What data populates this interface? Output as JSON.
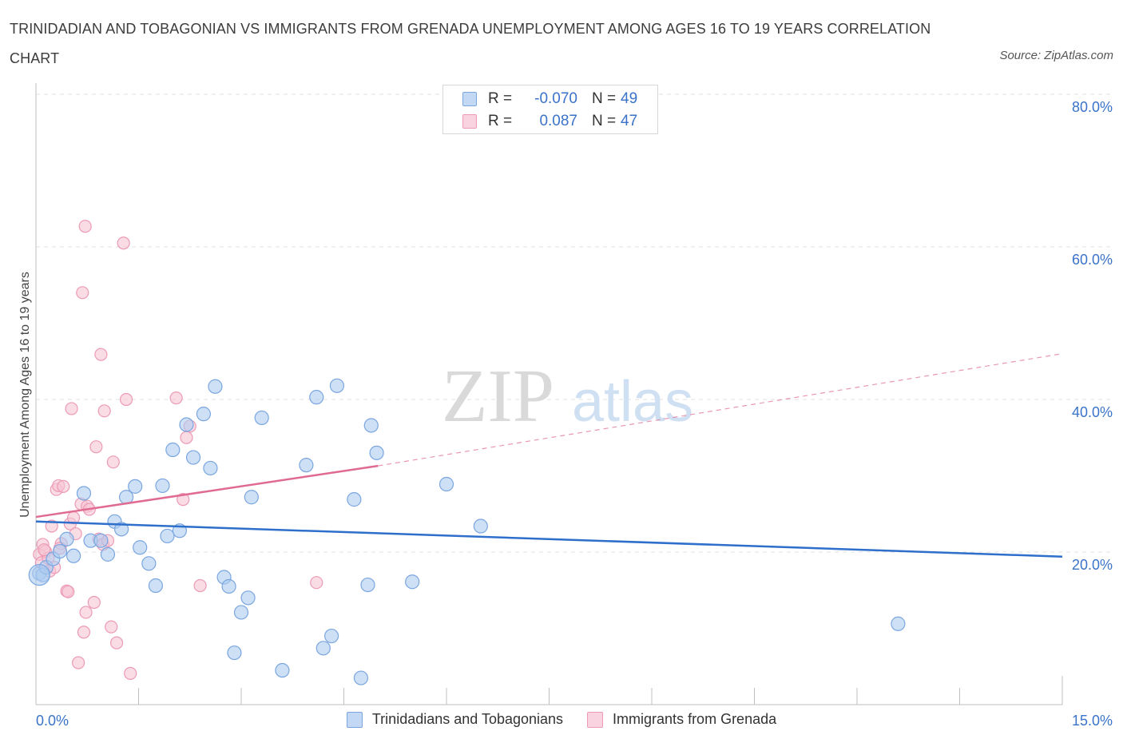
{
  "title": "TRINIDADIAN AND TOBAGONIAN VS IMMIGRANTS FROM GRENADA UNEMPLOYMENT AMONG AGES 16 TO 19 YEARS CORRELATION CHART",
  "source": "Source: ZipAtlas.com",
  "watermark": {
    "zip": "ZIP",
    "atlas": "atlas"
  },
  "legend": {
    "r_label": "R =",
    "n_label": "N =",
    "series": [
      {
        "r": "-0.070",
        "n": "49"
      },
      {
        "r": "0.087",
        "n": "47"
      }
    ]
  },
  "colors": {
    "blue_fill": "#aecbf0",
    "blue_stroke": "#7aa6e0",
    "blue_line": "#2e6fcb",
    "pink_fill": "#f6c4d4",
    "pink_stroke": "#ec9ab5",
    "pink_line": "#e06b92",
    "tick_text": "#3a73c9"
  },
  "chart_data": {
    "type": "scatter",
    "title": "TRINIDADIAN AND TOBAGONIAN VS IMMIGRANTS FROM GRENADA UNEMPLOYMENT AMONG AGES 16 TO 19 YEARS CORRELATION CHART",
    "xlabel": "",
    "ylabel": "Unemployment Among Ages 16 to 19 years",
    "xlim": [
      0,
      15
    ],
    "ylim": [
      0,
      80
    ],
    "x_tick_labels": [
      "0.0%",
      "15.0%"
    ],
    "y_ticks": [
      20,
      40,
      60,
      80
    ],
    "y_tick_labels": [
      "20.0%",
      "40.0%",
      "60.0%",
      "80.0%"
    ],
    "grid": true,
    "series": [
      {
        "name": "Trinidadians and Tobagonians",
        "color": "#aecbf0",
        "trend": {
          "x": [
            0,
            15
          ],
          "y": [
            24.0,
            19.4
          ],
          "style": "solid"
        },
        "points": [
          [
            0.05,
            17.2
          ],
          [
            0.1,
            17.0
          ],
          [
            0.15,
            18.0
          ],
          [
            0.25,
            19.1
          ],
          [
            0.35,
            20.1
          ],
          [
            0.45,
            21.7
          ],
          [
            0.55,
            19.5
          ],
          [
            0.7,
            27.7
          ],
          [
            0.8,
            21.5
          ],
          [
            0.95,
            21.5
          ],
          [
            1.05,
            19.7
          ],
          [
            1.15,
            24.0
          ],
          [
            1.25,
            23.0
          ],
          [
            1.32,
            27.2
          ],
          [
            1.45,
            28.6
          ],
          [
            1.52,
            20.6
          ],
          [
            1.65,
            18.5
          ],
          [
            1.75,
            15.6
          ],
          [
            1.85,
            28.7
          ],
          [
            1.92,
            22.1
          ],
          [
            2.0,
            33.4
          ],
          [
            2.1,
            22.8
          ],
          [
            2.2,
            36.7
          ],
          [
            2.3,
            32.4
          ],
          [
            2.45,
            38.1
          ],
          [
            2.55,
            31.0
          ],
          [
            2.62,
            41.7
          ],
          [
            2.75,
            16.7
          ],
          [
            2.82,
            15.5
          ],
          [
            2.9,
            6.8
          ],
          [
            3.0,
            12.1
          ],
          [
            3.1,
            14.0
          ],
          [
            3.15,
            27.2
          ],
          [
            3.3,
            37.6
          ],
          [
            3.6,
            4.5
          ],
          [
            3.95,
            31.4
          ],
          [
            4.1,
            40.3
          ],
          [
            4.2,
            7.4
          ],
          [
            4.32,
            9.0
          ],
          [
            4.4,
            41.8
          ],
          [
            4.65,
            26.9
          ],
          [
            4.75,
            3.5
          ],
          [
            4.85,
            15.7
          ],
          [
            4.9,
            36.6
          ],
          [
            4.98,
            33.0
          ],
          [
            5.5,
            16.1
          ],
          [
            6.0,
            28.9
          ],
          [
            6.5,
            23.4
          ],
          [
            12.6,
            10.6
          ]
        ]
      },
      {
        "name": "Immigrants from Grenada",
        "color": "#f6c4d4",
        "trend": {
          "x": [
            0,
            5.0
          ],
          "y": [
            24.6,
            31.3
          ],
          "style": "solid",
          "extension": {
            "x": [
              5.0,
              15
            ],
            "y": [
              31.3,
              46.0
            ],
            "style": "dashed"
          }
        },
        "points": [
          [
            0.05,
            19.7
          ],
          [
            0.08,
            18.6
          ],
          [
            0.1,
            21.0
          ],
          [
            0.14,
            20.1
          ],
          [
            0.18,
            19.2
          ],
          [
            0.2,
            17.5
          ],
          [
            0.23,
            23.4
          ],
          [
            0.27,
            18.0
          ],
          [
            0.3,
            28.2
          ],
          [
            0.33,
            28.7
          ],
          [
            0.37,
            21.1
          ],
          [
            0.4,
            28.6
          ],
          [
            0.45,
            14.9
          ],
          [
            0.47,
            14.8
          ],
          [
            0.5,
            23.7
          ],
          [
            0.55,
            24.5
          ],
          [
            0.52,
            38.8
          ],
          [
            0.58,
            22.4
          ],
          [
            0.62,
            5.5
          ],
          [
            0.66,
            26.3
          ],
          [
            0.68,
            54.0
          ],
          [
            0.7,
            9.5
          ],
          [
            0.73,
            12.1
          ],
          [
            0.75,
            26.0
          ],
          [
            0.78,
            25.6
          ],
          [
            0.85,
            13.4
          ],
          [
            0.88,
            33.8
          ],
          [
            0.92,
            21.7
          ],
          [
            0.95,
            45.9
          ],
          [
            0.98,
            21.0
          ],
          [
            1.0,
            38.5
          ],
          [
            1.05,
            21.5
          ],
          [
            1.1,
            10.2
          ],
          [
            1.13,
            31.8
          ],
          [
            1.18,
            8.1
          ],
          [
            1.28,
            60.5
          ],
          [
            1.32,
            40.0
          ],
          [
            1.38,
            4.1
          ],
          [
            0.72,
            62.7
          ],
          [
            2.05,
            40.2
          ],
          [
            2.15,
            26.9
          ],
          [
            2.2,
            35.0
          ],
          [
            2.25,
            36.5
          ],
          [
            2.4,
            15.6
          ],
          [
            4.1,
            16.0
          ],
          [
            0.12,
            20.3
          ],
          [
            0.35,
            20.5
          ]
        ]
      }
    ]
  },
  "bottom_legend": [
    "Trinidadians and Tobagonians",
    "Immigrants from Grenada"
  ]
}
